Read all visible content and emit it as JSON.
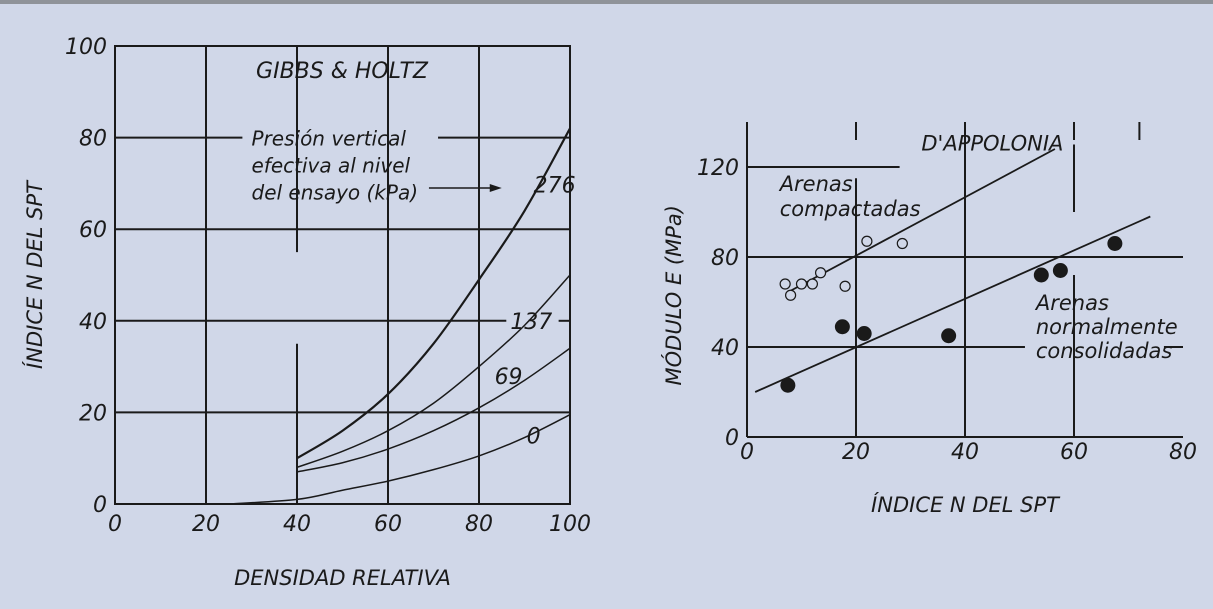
{
  "chart_data": [
    {
      "type": "line",
      "title": "GIBBS & HOLTZ",
      "xlabel": "DENSIDAD RELATIVA",
      "ylabel": "ÍNDICE  N  DEL  SPT",
      "xlim": [
        0,
        100
      ],
      "ylim": [
        0,
        100
      ],
      "x_ticks": [
        "0",
        "20",
        "40",
        "60",
        "80",
        "100"
      ],
      "y_ticks": [
        "0",
        "20",
        "40",
        "60",
        "80",
        "100"
      ],
      "grid": true,
      "annotation": [
        "Presión vertical",
        "efectiva al nivel",
        "del ensayo (kPa)"
      ],
      "series": [
        {
          "name": "276",
          "x": [
            40,
            50,
            60,
            70,
            80,
            90,
            100
          ],
          "y": [
            10,
            16,
            24,
            35,
            49,
            64,
            82
          ]
        },
        {
          "name": "137",
          "x": [
            40,
            50,
            60,
            70,
            80,
            90,
            100
          ],
          "y": [
            8,
            11.5,
            16,
            22,
            30,
            39,
            50
          ]
        },
        {
          "name": "69",
          "x": [
            40,
            50,
            60,
            70,
            80,
            90,
            100
          ],
          "y": [
            7,
            9,
            12,
            16,
            21,
            27,
            34
          ]
        },
        {
          "name": "0",
          "x": [
            25,
            40,
            50,
            60,
            70,
            80,
            90,
            100
          ],
          "y": [
            0,
            1,
            3,
            5,
            7.5,
            10.5,
            14.5,
            19.5
          ]
        }
      ]
    },
    {
      "type": "scatter",
      "title": "D'APPOLONIA",
      "xlabel": "ÍNDICE  N  DEL  SPT",
      "ylabel": "MÓDULO E (MPa)",
      "xlim": [
        0,
        80
      ],
      "ylim": [
        0,
        140
      ],
      "x_ticks": [
        "0",
        "20",
        "40",
        "60",
        "80"
      ],
      "y_ticks": [
        "0",
        "40",
        "80",
        "120"
      ],
      "grid": true,
      "series": [
        {
          "name": "Arenas compactadas",
          "label_lines": [
            "Arenas",
            "compactadas"
          ],
          "marker": "open-circle",
          "x": [
            7,
            8,
            10,
            12,
            13.5,
            18,
            22,
            28.5
          ],
          "y": [
            68,
            63,
            68,
            68,
            73,
            67,
            87,
            86
          ],
          "fit": {
            "x": [
              8,
              56.5
            ],
            "y": [
              65,
              128
            ]
          }
        },
        {
          "name": "Arenas normalmente consolidadas",
          "label_lines": [
            "Arenas",
            "normalmente",
            "consolidadas"
          ],
          "marker": "filled-circle",
          "x": [
            7.5,
            17.5,
            21.5,
            37,
            54,
            57.5,
            67.5
          ],
          "y": [
            23,
            49,
            46,
            45,
            72,
            74,
            86
          ],
          "fit": {
            "x": [
              1.5,
              74
            ],
            "y": [
              20,
              98
            ]
          }
        }
      ]
    }
  ]
}
